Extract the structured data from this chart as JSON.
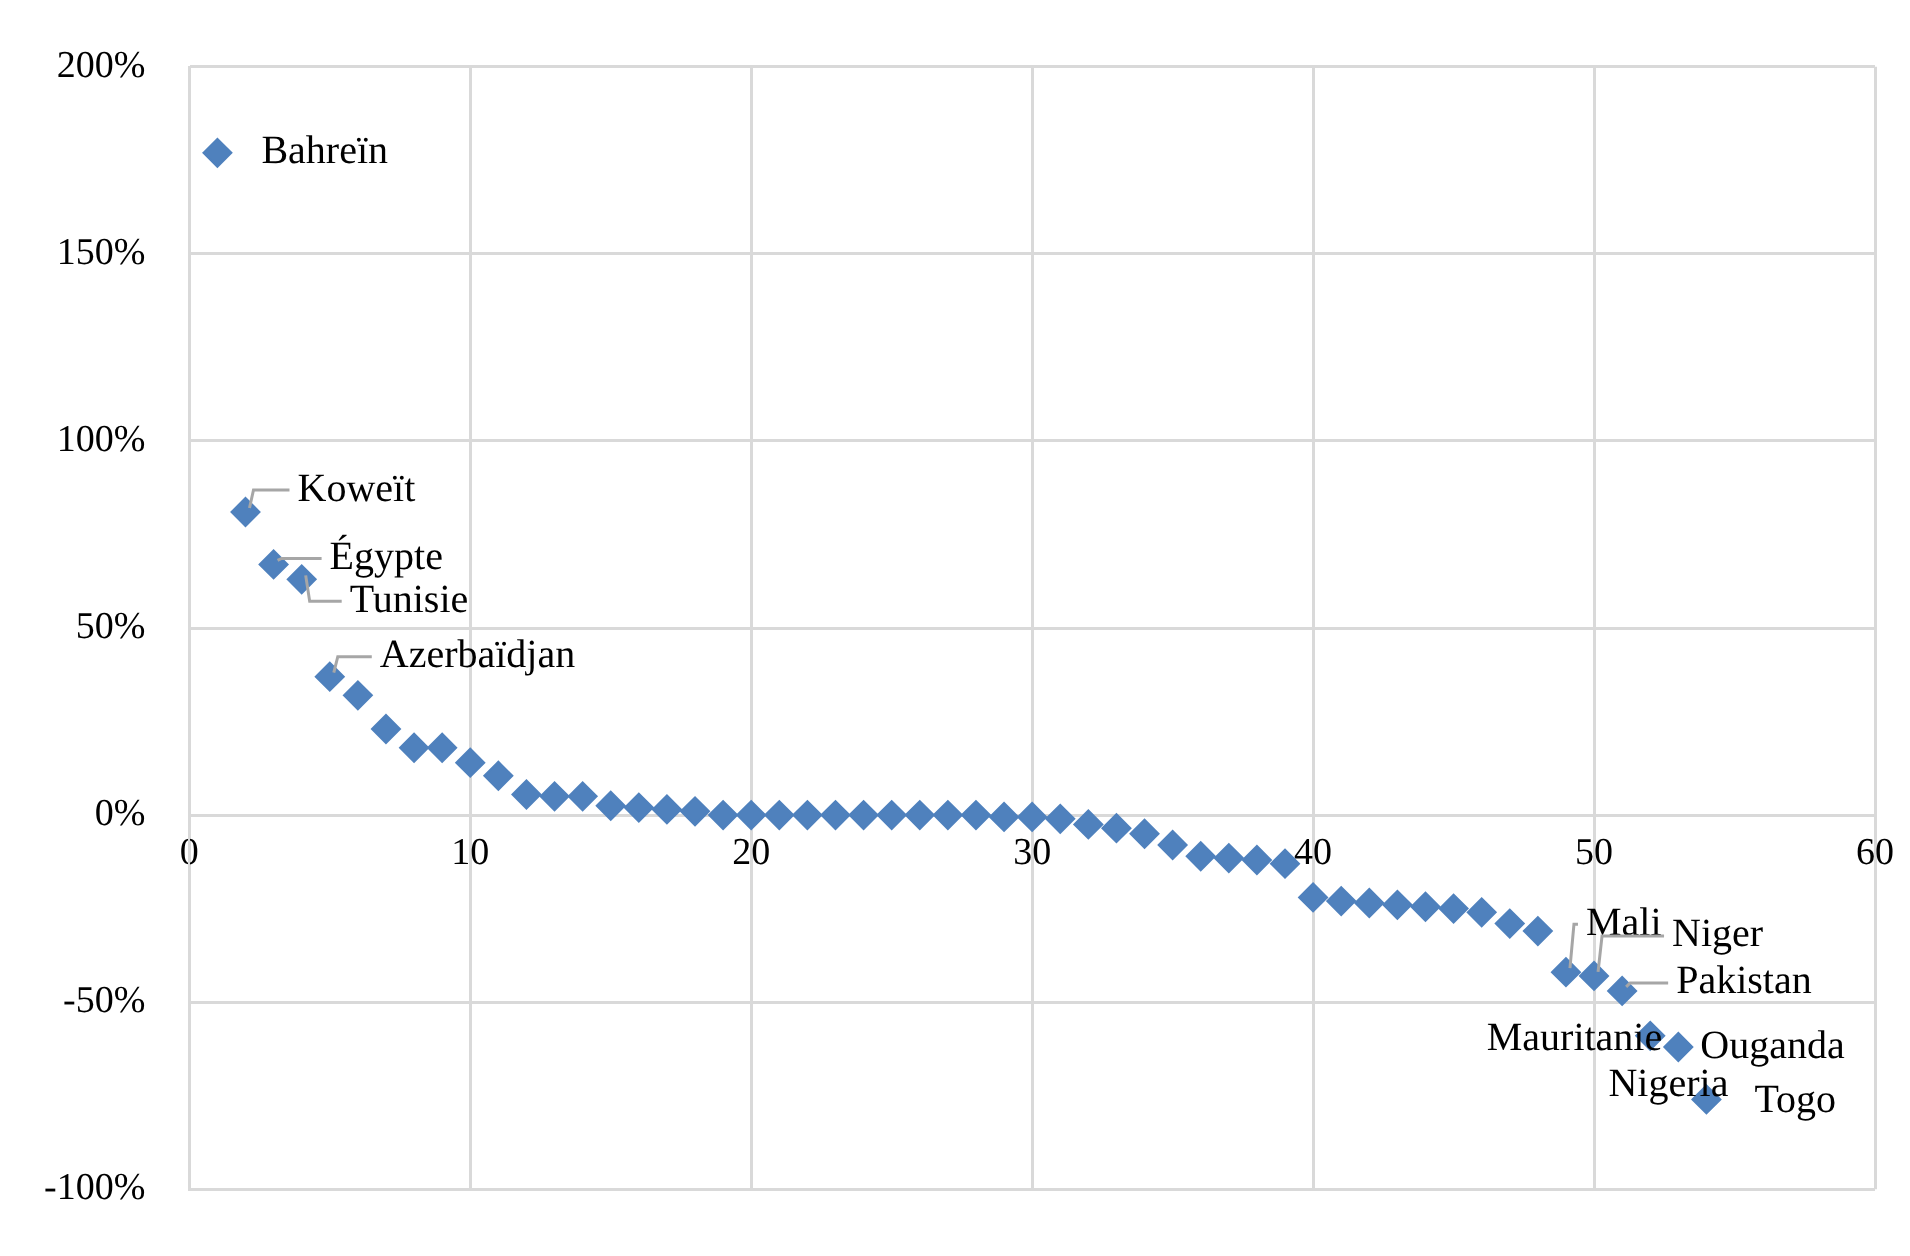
{
  "chart_data": {
    "type": "scatter",
    "marker": "diamond",
    "grid": true,
    "legend": false,
    "xlim": [
      0,
      60
    ],
    "xticks": [
      0,
      10,
      20,
      30,
      40,
      50,
      60
    ],
    "ylim": [
      -100,
      200
    ],
    "yticks": [
      {
        "value": -100,
        "label": "-100%"
      },
      {
        "value": -50,
        "label": "-50%"
      },
      {
        "value": 0,
        "label": "0%"
      },
      {
        "value": 50,
        "label": "50%"
      },
      {
        "value": 100,
        "label": "100%"
      },
      {
        "value": 150,
        "label": "150%"
      },
      {
        "value": 200,
        "label": "200%"
      }
    ],
    "series": [
      {
        "color": "#4f81bd",
        "x": [
          1,
          2,
          3,
          4,
          5,
          6,
          7,
          8,
          9,
          10,
          11,
          12,
          13,
          14,
          15,
          16,
          17,
          18,
          19,
          20,
          21,
          22,
          23,
          24,
          25,
          26,
          27,
          28,
          29,
          30,
          31,
          32,
          33,
          34,
          35,
          36,
          37,
          38,
          39,
          40,
          41,
          42,
          43,
          44,
          45,
          46,
          47,
          48,
          49,
          50,
          51,
          52,
          53,
          54
        ],
        "values": [
          177,
          81,
          67,
          63,
          37,
          32,
          23,
          18,
          18,
          14,
          10.5,
          5.5,
          5,
          5,
          2.5,
          2,
          1.5,
          1,
          0,
          0,
          0,
          0,
          0,
          0,
          0,
          0,
          0,
          0,
          -0.5,
          -0.5,
          -1,
          -2.5,
          -3.5,
          -5,
          -8,
          -11,
          -11.5,
          -12,
          -13,
          -22,
          -23,
          -23.5,
          -24,
          -24.5,
          -25,
          -26,
          -29,
          -31,
          -42,
          -43,
          -47,
          -59,
          -62,
          -76
        ]
      }
    ],
    "annotations": [
      {
        "text": "Bahreïn",
        "x": 1,
        "y": 177
      },
      {
        "text": "Koweït",
        "x": 2,
        "y": 81
      },
      {
        "text": "Égypte",
        "x": 3,
        "y": 67
      },
      {
        "text": "Tunisie",
        "x": 4,
        "y": 63
      },
      {
        "text": "Azerbaïdjan",
        "x": 5,
        "y": 37
      },
      {
        "text": "Mali",
        "x": 49,
        "y": -42
      },
      {
        "text": "Niger",
        "x": 50,
        "y": -43
      },
      {
        "text": "Pakistan",
        "x": 51,
        "y": -47
      },
      {
        "text": "Mauritanie",
        "x": 52,
        "y": -59
      },
      {
        "text": "Ouganda",
        "x": 53,
        "y": -62
      },
      {
        "text": "Nigeria",
        "x": 54,
        "y": -76
      },
      {
        "text": "Togo",
        "x": 54,
        "y": -76
      }
    ]
  }
}
